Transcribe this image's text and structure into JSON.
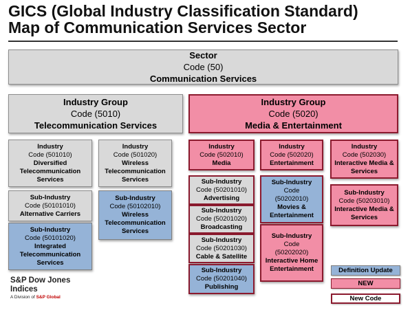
{
  "title": {
    "line1": "GICS (Global Industry Classification Standard)",
    "line2": "Map of Communication Services Sector"
  },
  "sector": {
    "label": "Sector",
    "code": "Code (50)",
    "name": "Communication Services"
  },
  "groups": [
    {
      "label": "Industry Group",
      "code": "Code (5010)",
      "name": "Telecommunication Services"
    },
    {
      "label": "Industry Group",
      "code": "Code (5020)",
      "name": "Media & Entertainment"
    }
  ],
  "industries": [
    {
      "label": "Industry",
      "code": "Code (501010)",
      "name": "Diversified Telecommunication Services"
    },
    {
      "label": "Industry",
      "code": "Code (501020)",
      "name": "Wireless Telecommunication Services"
    },
    {
      "label": "Industry",
      "code": "Code (502010)",
      "name": "Media"
    },
    {
      "label": "Industry",
      "code": "Code (502020)",
      "name": "Entertainment"
    },
    {
      "label": "Industry",
      "code": "Code (502030)",
      "name": "Interactive Media & Services"
    }
  ],
  "subindustries": [
    {
      "label": "Sub-Industry",
      "code": "Code (50101010)",
      "name": "Alternative Carriers"
    },
    {
      "label": "Sub-Industry",
      "code": "Code (50101020)",
      "name": "Integrated Telecommunication Services"
    },
    {
      "label": "Sub-Industry",
      "code": "Code (50102010)",
      "name": "Wireless Telecommunication Services"
    },
    {
      "label": "Sub-Industry",
      "code": "Code (50201010)",
      "name": "Advertising"
    },
    {
      "label": "Sub-Industry",
      "code": "Code (50201020)",
      "name": "Broadcasting"
    },
    {
      "label": "Sub-Industry",
      "code": "Code (50201030)",
      "name": "Cable & Satellite"
    },
    {
      "label": "Sub-Industry",
      "code": "Code (50201040)",
      "name": "Publishing"
    },
    {
      "label": "Sub-Industry",
      "code": "Code",
      "code2": "(50202010)",
      "name": "Movies & Entertainment"
    },
    {
      "label": "Sub-Industry",
      "code": "Code",
      "code2": "(50202020)",
      "name": "Interactive Home Entertainment"
    },
    {
      "label": "Sub-Industry",
      "code": "Code (50203010)",
      "name": "Interactive Media & Services"
    }
  ],
  "legend": {
    "update": "Definition Update",
    "new": "NEW",
    "newcode": "New Code"
  },
  "logo": {
    "line1": "S&P Dow Jones",
    "line2": "Indices",
    "division": "A Division of ",
    "parent": "S&P Global"
  },
  "colors": {
    "gray": "#d9d9d9",
    "blue": "#95b3d7",
    "pink": "#f28ea6",
    "red_border": "#8b1a2e"
  }
}
